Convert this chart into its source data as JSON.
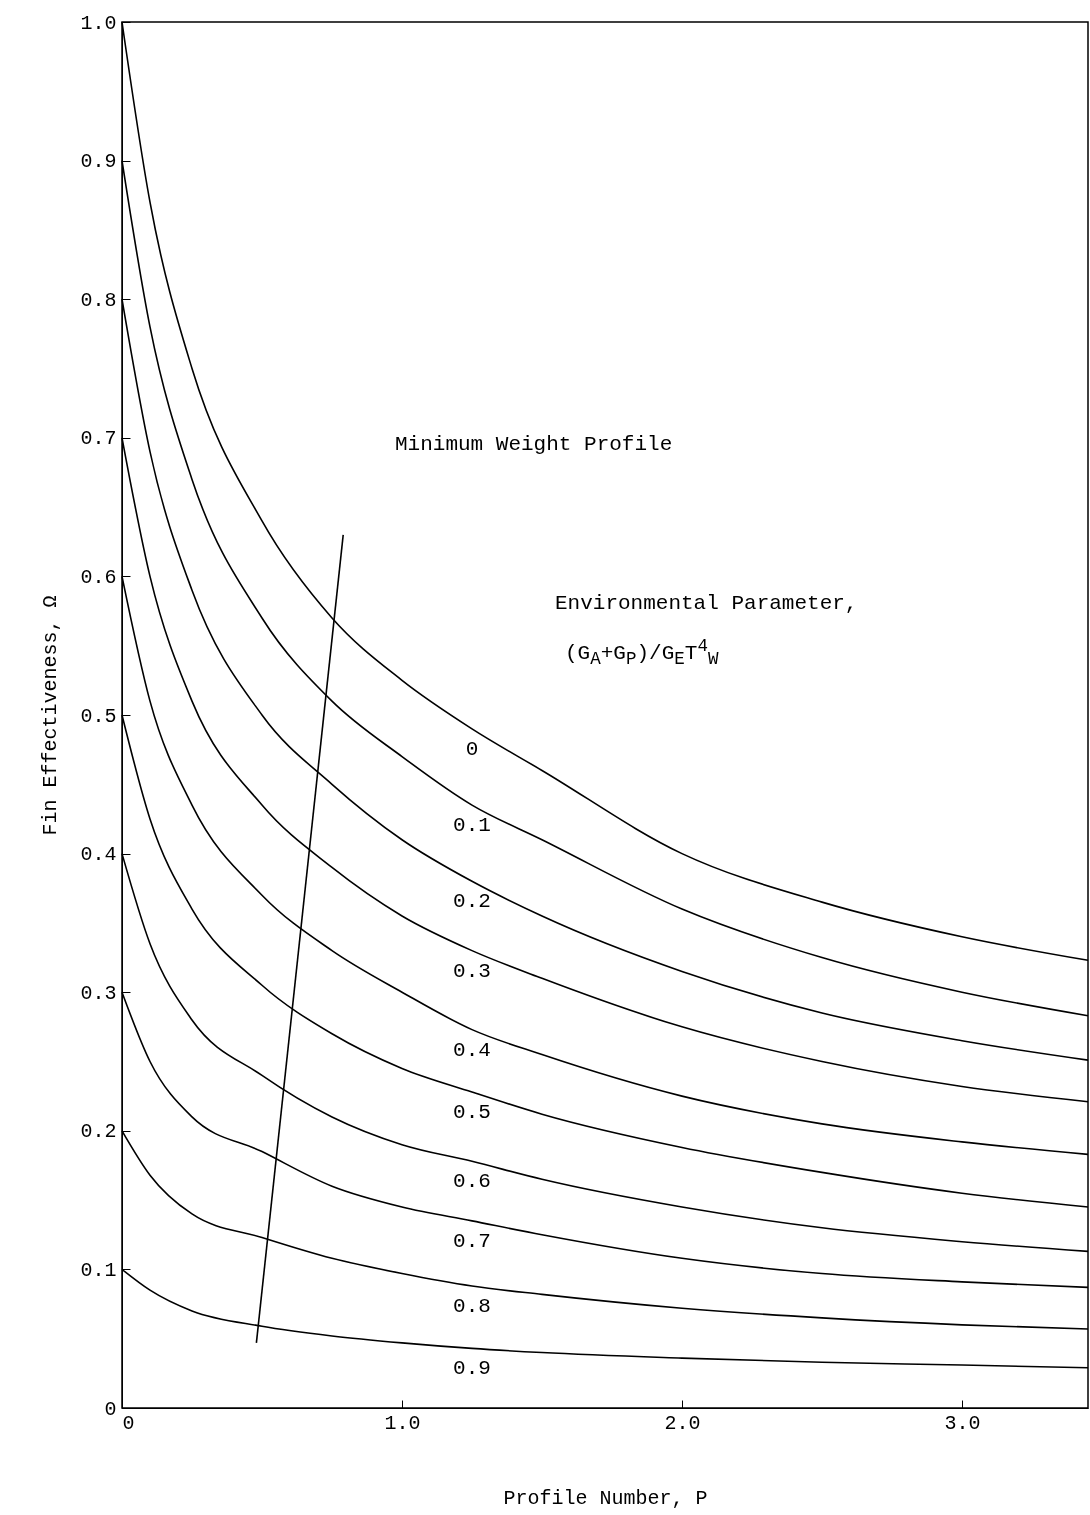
{
  "chart_data": {
    "type": "line",
    "xlabel": "Profile Number, P",
    "ylabel": "Fin Effectiveness, Ω",
    "x": [
      0,
      0.1,
      0.25,
      0.5,
      0.75,
      1.0,
      1.25,
      1.5,
      2.0,
      2.5,
      3.0,
      3.45
    ],
    "series": [
      {
        "name": "0",
        "color": "#000000",
        "values": [
          1.0,
          0.87,
          0.75,
          0.64,
          0.57,
          0.525,
          0.49,
          0.46,
          0.4,
          0.365,
          0.34,
          0.323
        ]
      },
      {
        "name": "0.1",
        "color": "#000000",
        "values": [
          0.9,
          0.78,
          0.67,
          0.57,
          0.51,
          0.47,
          0.435,
          0.41,
          0.36,
          0.325,
          0.3,
          0.283
        ]
      },
      {
        "name": "0.2",
        "color": "#000000",
        "values": [
          0.8,
          0.69,
          0.59,
          0.5,
          0.45,
          0.41,
          0.38,
          0.355,
          0.315,
          0.285,
          0.265,
          0.251
        ]
      },
      {
        "name": "0.3",
        "color": "#000000",
        "values": [
          0.7,
          0.6,
          0.51,
          0.435,
          0.39,
          0.355,
          0.33,
          0.31,
          0.275,
          0.25,
          0.232,
          0.221
        ]
      },
      {
        "name": "0.4",
        "color": "#000000",
        "values": [
          0.6,
          0.51,
          0.435,
          0.37,
          0.33,
          0.3,
          0.273,
          0.255,
          0.225,
          0.205,
          0.192,
          0.183
        ]
      },
      {
        "name": "0.5",
        "color": "#000000",
        "values": [
          0.5,
          0.425,
          0.36,
          0.305,
          0.27,
          0.245,
          0.228,
          0.212,
          0.188,
          0.17,
          0.155,
          0.145
        ]
      },
      {
        "name": "0.6",
        "color": "#000000",
        "values": [
          0.4,
          0.335,
          0.28,
          0.24,
          0.21,
          0.19,
          0.178,
          0.165,
          0.145,
          0.13,
          0.12,
          0.113
        ]
      },
      {
        "name": "0.7",
        "color": "#000000",
        "values": [
          0.3,
          0.25,
          0.21,
          0.185,
          0.16,
          0.145,
          0.135,
          0.125,
          0.108,
          0.097,
          0.091,
          0.087
        ]
      },
      {
        "name": "0.8",
        "color": "#000000",
        "values": [
          0.2,
          0.168,
          0.14,
          0.123,
          0.108,
          0.097,
          0.088,
          0.082,
          0.072,
          0.065,
          0.06,
          0.057
        ]
      },
      {
        "name": "0.9",
        "color": "#000000",
        "values": [
          0.1,
          0.085,
          0.07,
          0.059,
          0.052,
          0.047,
          0.043,
          0.04,
          0.036,
          0.033,
          0.031,
          0.029
        ]
      },
      {
        "color": "#000000",
        "x": [
          0.48,
          0.79
        ],
        "values": [
          0.047,
          0.63
        ]
      }
    ],
    "annotations": [
      "Minimum Weight Profile",
      "Environmental Parameter,",
      "(G$_{A}$+G$_{P}$)/G$_{E}$T$^{4}$$_{W}$"
    ],
    "xlim": [
      0,
      3.45
    ],
    "ylim": [
      0,
      1.0
    ],
    "xticks": [
      0,
      {
        "value": 1,
        "label": "1.0"
      },
      {
        "value": 2,
        "label": "2.0"
      },
      {
        "value": 3,
        "label": "3.0"
      }
    ],
    "yticks": [
      0,
      0.1,
      0.2,
      0.3,
      0.4,
      0.5,
      0.6,
      0.7,
      0.8,
      0.9,
      {
        "value": 1,
        "label": "1.0"
      }
    ]
  }
}
